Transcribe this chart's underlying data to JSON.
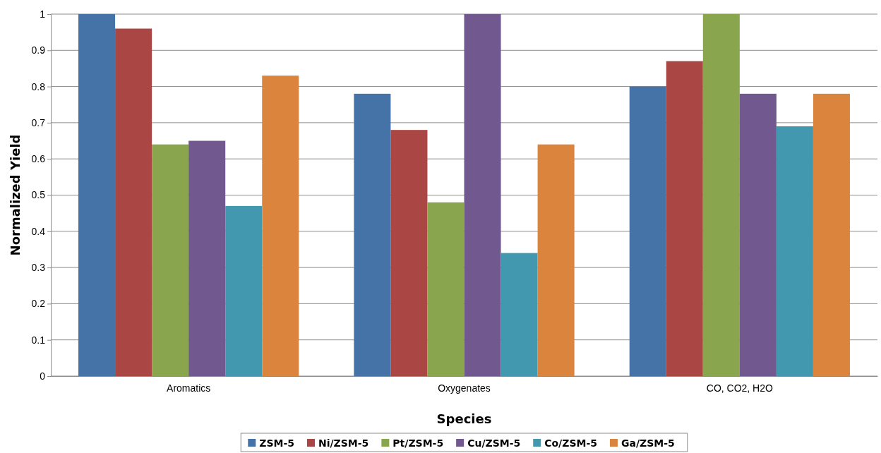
{
  "chart_data": {
    "type": "bar",
    "xlabel": "Species",
    "ylabel": "Normalized Yield",
    "categories": [
      "Aromatics",
      "Oxygenates",
      "CO, CO2, H2O"
    ],
    "series": [
      {
        "name": "ZSM-5",
        "color": "#4572a7",
        "values": [
          1.0,
          0.78,
          0.8
        ]
      },
      {
        "name": "Ni/ZSM-5",
        "color": "#aa4643",
        "values": [
          0.96,
          0.68,
          0.87
        ]
      },
      {
        "name": "Pt/ZSM-5",
        "color": "#89a54e",
        "values": [
          0.64,
          0.48,
          1.0
        ]
      },
      {
        "name": "Cu/ZSM-5",
        "color": "#71588f",
        "values": [
          0.65,
          1.0,
          0.78
        ]
      },
      {
        "name": "Co/ZSM-5",
        "color": "#4198af",
        "values": [
          0.47,
          0.34,
          0.69
        ]
      },
      {
        "name": "Ga/ZSM-5",
        "color": "#db843d",
        "values": [
          0.83,
          0.64,
          0.78
        ]
      }
    ],
    "ylim": [
      0,
      1
    ],
    "yticks": [
      0,
      0.1,
      0.2,
      0.3,
      0.4,
      0.5,
      0.6,
      0.7,
      0.8,
      0.9,
      1
    ],
    "grid": "y",
    "legend": "bottom"
  }
}
